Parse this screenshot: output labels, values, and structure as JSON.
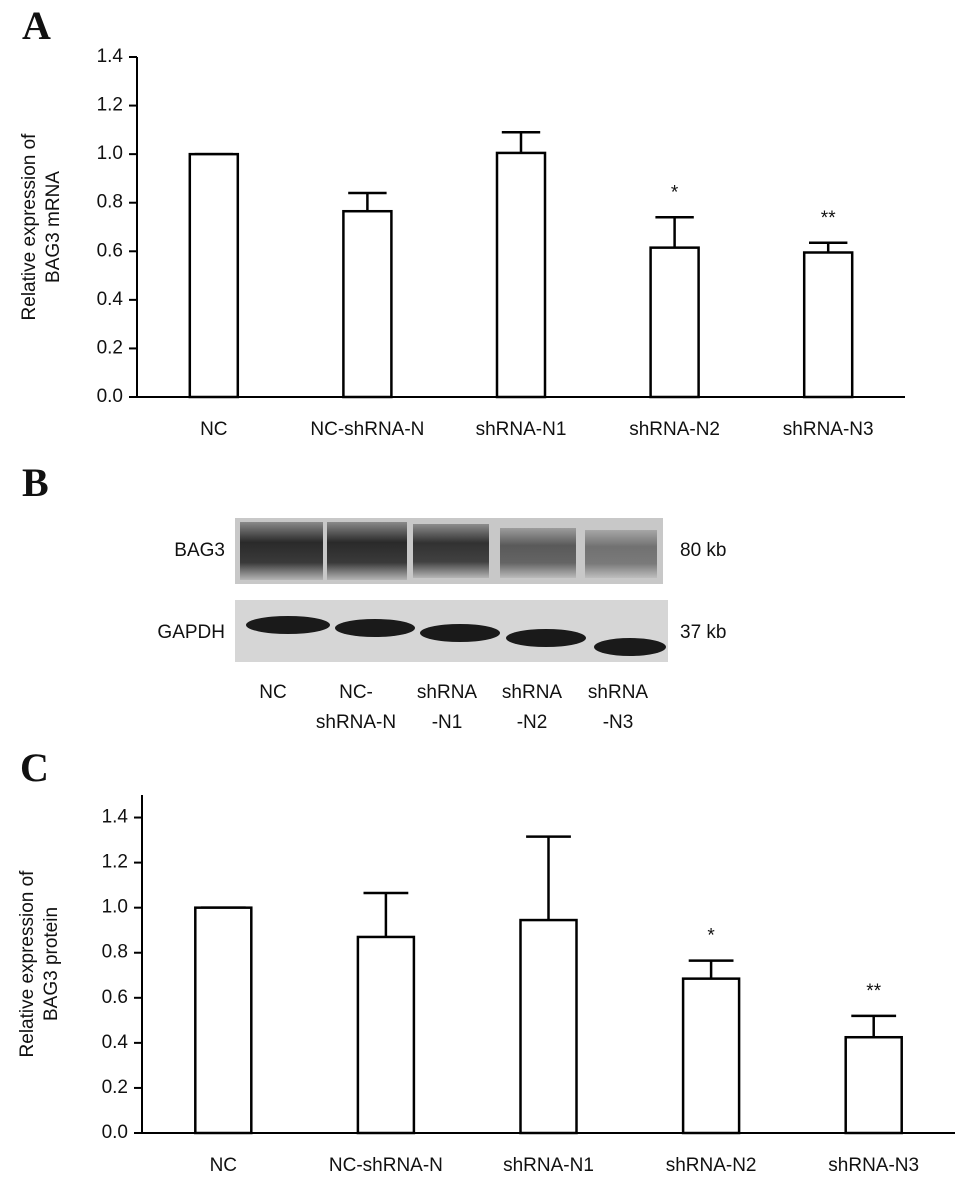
{
  "chart_data": [
    {
      "type": "bar",
      "panel_label": "A",
      "ylabel": [
        "Relative expression of",
        "BAG3 mRNA"
      ],
      "categories": [
        "NC",
        "NC-shRNA-N",
        "shRNA-N1",
        "shRNA-N2",
        "shRNA-N3"
      ],
      "values": [
        1.0,
        0.765,
        1.005,
        0.615,
        0.595
      ],
      "errors": [
        0,
        0.075,
        0.085,
        0.125,
        0.04
      ],
      "annotations": [
        null,
        null,
        null,
        "*",
        "**"
      ],
      "color": "#ffffff",
      "ylim": [
        0,
        1.4
      ],
      "yticks": [
        {
          "value": 0,
          "label": "0.0"
        },
        0.2,
        0.4,
        0.6,
        0.8,
        {
          "value": 1,
          "label": "1.0"
        },
        1.2,
        1.4
      ]
    },
    {
      "type": "bar",
      "panel_label": "C",
      "ylabel": [
        "Relative expression of",
        "BAG3 protein"
      ],
      "categories": [
        "NC",
        "NC-shRNA-N",
        "shRNA-N1",
        "shRNA-N2",
        "shRNA-N3"
      ],
      "values": [
        1.0,
        0.87,
        0.945,
        0.685,
        0.425
      ],
      "errors": [
        0,
        0.195,
        0.37,
        0.08,
        0.095
      ],
      "annotations": [
        null,
        null,
        null,
        "*",
        "**"
      ],
      "color": "#ffffff",
      "ylim": [
        0,
        1.5
      ],
      "yticks": [
        {
          "value": 0,
          "label": "0.0"
        },
        0.2,
        0.4,
        0.6,
        0.8,
        {
          "value": 1,
          "label": "1.0"
        },
        1.2,
        1.4
      ]
    }
  ],
  "western_blot": {
    "panel_label": "B",
    "rows": [
      {
        "protein": "BAG3",
        "size": "80 kb"
      },
      {
        "protein": "GAPDH",
        "size": "37 kb"
      }
    ],
    "lanes": [
      [
        "NC"
      ],
      [
        "NC-",
        "shRNA-N"
      ],
      [
        "shRNA",
        "-N1"
      ],
      [
        "shRNA",
        "-N2"
      ],
      [
        "shRNA",
        "-N3"
      ]
    ]
  }
}
